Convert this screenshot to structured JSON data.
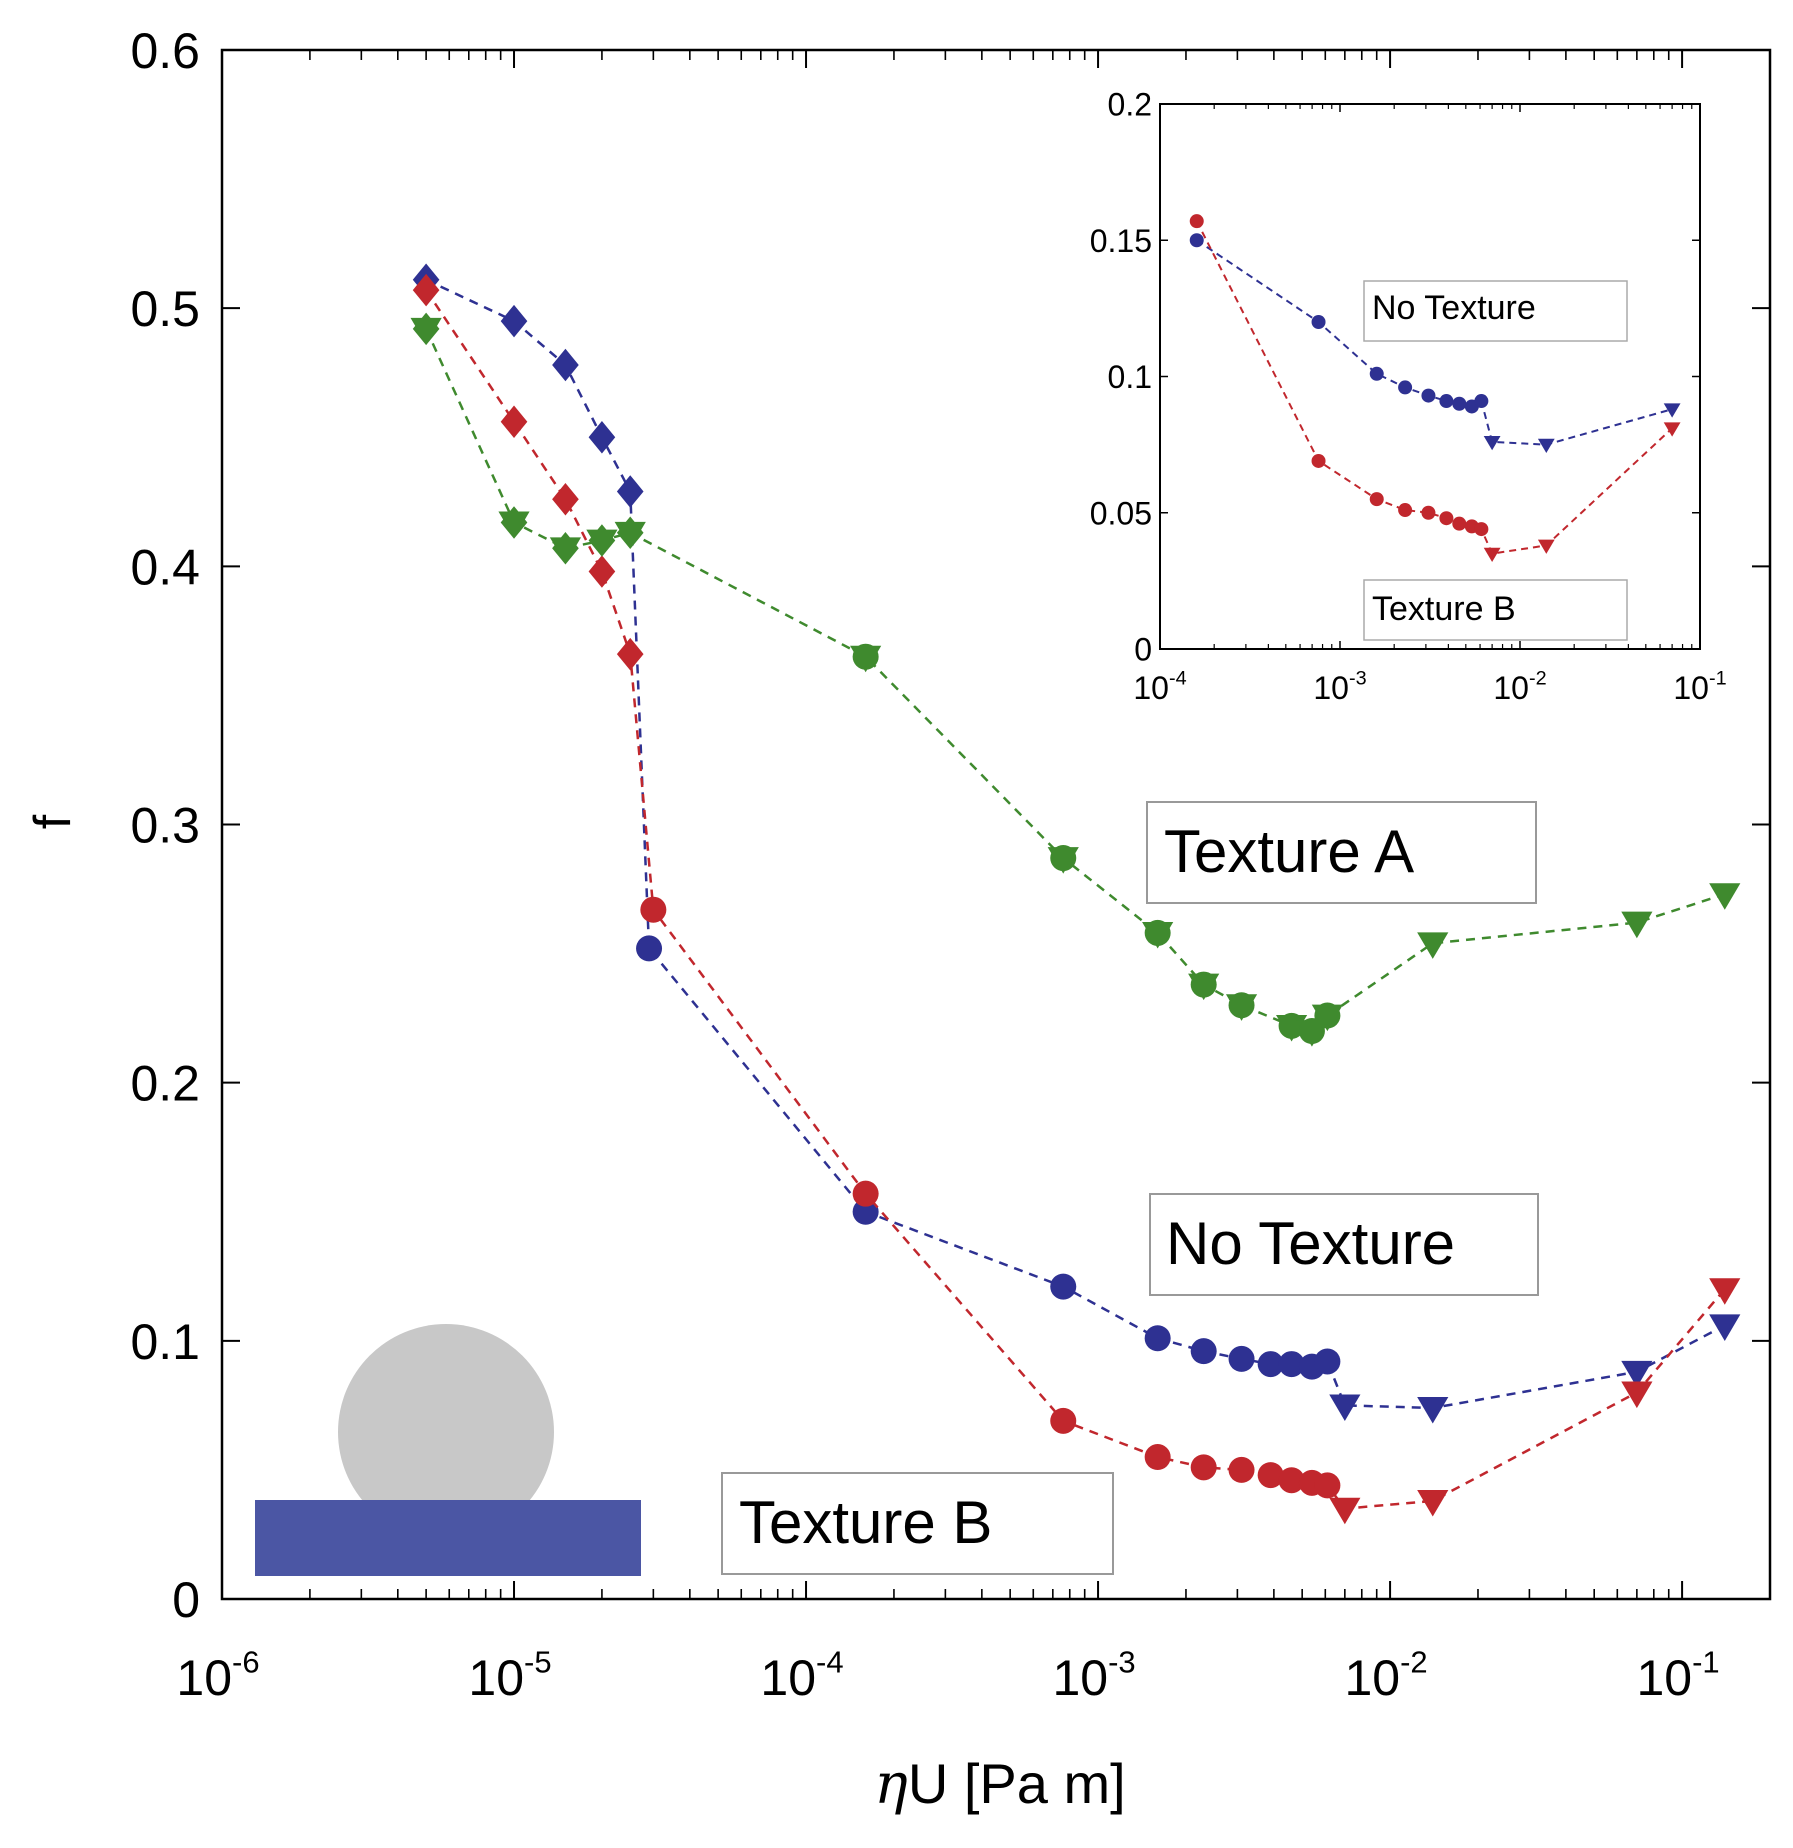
{
  "chart_data": [
    {
      "id": "main",
      "type": "scatter",
      "xscale": "log",
      "xlim": [
        1e-06,
        0.2
      ],
      "ylim": [
        0,
        0.6
      ],
      "xlabel_symbol": "η",
      "xlabel_rest": "U [Pa m]",
      "ylabel": "f",
      "x_ticks": [
        {
          "value": 1e-06,
          "base": "10",
          "exp": "-6"
        },
        {
          "value": 1e-05,
          "base": "10",
          "exp": "-5"
        },
        {
          "value": 0.0001,
          "base": "10",
          "exp": "-4"
        },
        {
          "value": 0.001,
          "base": "10",
          "exp": "-3"
        },
        {
          "value": 0.01,
          "base": "10",
          "exp": "-2"
        },
        {
          "value": 0.1,
          "base": "10",
          "exp": "-1"
        }
      ],
      "y_ticks": [
        {
          "value": 0,
          "label": "0"
        },
        {
          "value": 0.1,
          "label": "0.1"
        },
        {
          "value": 0.2,
          "label": "0.2"
        },
        {
          "value": 0.3,
          "label": "0.3"
        },
        {
          "value": 0.4,
          "label": "0.4"
        },
        {
          "value": 0.5,
          "label": "0.5"
        },
        {
          "value": 0.6,
          "label": "0.6"
        }
      ],
      "series": [
        {
          "name": "No Texture",
          "color": "#2e3192",
          "points": [
            {
              "x": 5e-06,
              "y": 0.511,
              "marker": "diamond"
            },
            {
              "x": 1e-05,
              "y": 0.495,
              "marker": "diamond"
            },
            {
              "x": 1.5e-05,
              "y": 0.478,
              "marker": "diamond"
            },
            {
              "x": 2e-05,
              "y": 0.45,
              "marker": "diamond"
            },
            {
              "x": 2.5e-05,
              "y": 0.429,
              "marker": "diamond"
            },
            {
              "x": 2.9e-05,
              "y": 0.252,
              "marker": "circle"
            },
            {
              "x": 0.00016,
              "y": 0.15,
              "marker": "circle"
            },
            {
              "x": 0.00076,
              "y": 0.121,
              "marker": "circle"
            },
            {
              "x": 0.0016,
              "y": 0.101,
              "marker": "circle"
            },
            {
              "x": 0.0023,
              "y": 0.096,
              "marker": "circle"
            },
            {
              "x": 0.0031,
              "y": 0.093,
              "marker": "circle"
            },
            {
              "x": 0.0039,
              "y": 0.091,
              "marker": "circle"
            },
            {
              "x": 0.0046,
              "y": 0.091,
              "marker": "circle"
            },
            {
              "x": 0.0054,
              "y": 0.09,
              "marker": "circle"
            },
            {
              "x": 0.0061,
              "y": 0.092,
              "marker": "circle"
            },
            {
              "x": 0.007,
              "y": 0.075,
              "marker": "triangle"
            },
            {
              "x": 0.014,
              "y": 0.074,
              "marker": "triangle"
            },
            {
              "x": 0.07,
              "y": 0.088,
              "marker": "triangle"
            },
            {
              "x": 0.14,
              "y": 0.106,
              "marker": "triangle"
            }
          ]
        },
        {
          "name": "Texture B",
          "color": "#c1272d",
          "points": [
            {
              "x": 5e-06,
              "y": 0.507,
              "marker": "diamond"
            },
            {
              "x": 1e-05,
              "y": 0.456,
              "marker": "diamond"
            },
            {
              "x": 1.5e-05,
              "y": 0.426,
              "marker": "diamond"
            },
            {
              "x": 2e-05,
              "y": 0.398,
              "marker": "diamond"
            },
            {
              "x": 2.5e-05,
              "y": 0.366,
              "marker": "diamond"
            },
            {
              "x": 3e-05,
              "y": 0.267,
              "marker": "circle"
            },
            {
              "x": 0.00016,
              "y": 0.157,
              "marker": "circle"
            },
            {
              "x": 0.00076,
              "y": 0.069,
              "marker": "circle"
            },
            {
              "x": 0.0016,
              "y": 0.055,
              "marker": "circle"
            },
            {
              "x": 0.0023,
              "y": 0.051,
              "marker": "circle"
            },
            {
              "x": 0.0031,
              "y": 0.05,
              "marker": "circle"
            },
            {
              "x": 0.0039,
              "y": 0.048,
              "marker": "circle"
            },
            {
              "x": 0.0046,
              "y": 0.046,
              "marker": "circle"
            },
            {
              "x": 0.0054,
              "y": 0.045,
              "marker": "circle"
            },
            {
              "x": 0.0061,
              "y": 0.044,
              "marker": "circle"
            },
            {
              "x": 0.007,
              "y": 0.035,
              "marker": "triangle"
            },
            {
              "x": 0.014,
              "y": 0.038,
              "marker": "triangle"
            },
            {
              "x": 0.07,
              "y": 0.08,
              "marker": "triangle"
            },
            {
              "x": 0.14,
              "y": 0.12,
              "marker": "triangle"
            }
          ]
        },
        {
          "name": "Texture A",
          "color": "#3f8a2e",
          "points": [
            {
              "x": 5e-06,
              "y": 0.492,
              "marker": "triangle-diamond"
            },
            {
              "x": 1e-05,
              "y": 0.417,
              "marker": "triangle-diamond"
            },
            {
              "x": 1.5e-05,
              "y": 0.407,
              "marker": "triangle-diamond"
            },
            {
              "x": 2e-05,
              "y": 0.41,
              "marker": "triangle-diamond"
            },
            {
              "x": 2.5e-05,
              "y": 0.413,
              "marker": "triangle-diamond"
            },
            {
              "x": 0.00016,
              "y": 0.365,
              "marker": "triangle-circle"
            },
            {
              "x": 0.00076,
              "y": 0.287,
              "marker": "triangle-circle"
            },
            {
              "x": 0.0016,
              "y": 0.258,
              "marker": "triangle-circle"
            },
            {
              "x": 0.0023,
              "y": 0.238,
              "marker": "triangle-circle"
            },
            {
              "x": 0.0031,
              "y": 0.23,
              "marker": "triangle-circle"
            },
            {
              "x": 0.0046,
              "y": 0.222,
              "marker": "triangle-circle"
            },
            {
              "x": 0.0054,
              "y": 0.22,
              "marker": "triangle-circle"
            },
            {
              "x": 0.0061,
              "y": 0.226,
              "marker": "triangle-circle"
            },
            {
              "x": 0.014,
              "y": 0.254,
              "marker": "triangle"
            },
            {
              "x": 0.07,
              "y": 0.262,
              "marker": "triangle"
            },
            {
              "x": 0.14,
              "y": 0.273,
              "marker": "triangle"
            }
          ]
        }
      ],
      "annotations": [
        "Texture A",
        "No Texture",
        "Texture B"
      ]
    },
    {
      "id": "inset",
      "type": "scatter",
      "xscale": "log",
      "xlim": [
        0.0001,
        0.1
      ],
      "ylim": [
        0,
        0.2
      ],
      "x_ticks": [
        {
          "value": 0.0001,
          "base": "10",
          "exp": "-4"
        },
        {
          "value": 0.001,
          "base": "10",
          "exp": "-3"
        },
        {
          "value": 0.01,
          "base": "10",
          "exp": "-2"
        },
        {
          "value": 0.1,
          "base": "10",
          "exp": "-1"
        }
      ],
      "y_ticks": [
        {
          "value": 0,
          "label": "0"
        },
        {
          "value": 0.05,
          "label": "0.05"
        },
        {
          "value": 0.1,
          "label": "0.1"
        },
        {
          "value": 0.15,
          "label": "0.15"
        },
        {
          "value": 0.2,
          "label": "0.2"
        }
      ],
      "series": [
        {
          "name": "No Texture",
          "color": "#2e3192",
          "points": [
            {
              "x": 0.00016,
              "y": 0.15,
              "marker": "circle"
            },
            {
              "x": 0.00076,
              "y": 0.12,
              "marker": "circle"
            },
            {
              "x": 0.0016,
              "y": 0.101,
              "marker": "circle"
            },
            {
              "x": 0.0023,
              "y": 0.096,
              "marker": "circle"
            },
            {
              "x": 0.0031,
              "y": 0.093,
              "marker": "circle"
            },
            {
              "x": 0.0039,
              "y": 0.091,
              "marker": "circle"
            },
            {
              "x": 0.0046,
              "y": 0.09,
              "marker": "circle"
            },
            {
              "x": 0.0054,
              "y": 0.089,
              "marker": "circle"
            },
            {
              "x": 0.0061,
              "y": 0.091,
              "marker": "circle"
            },
            {
              "x": 0.007,
              "y": 0.076,
              "marker": "triangle"
            },
            {
              "x": 0.014,
              "y": 0.075,
              "marker": "triangle"
            },
            {
              "x": 0.07,
              "y": 0.088,
              "marker": "triangle"
            }
          ]
        },
        {
          "name": "Texture B",
          "color": "#c1272d",
          "points": [
            {
              "x": 0.00016,
              "y": 0.157,
              "marker": "circle"
            },
            {
              "x": 0.00076,
              "y": 0.069,
              "marker": "circle"
            },
            {
              "x": 0.0016,
              "y": 0.055,
              "marker": "circle"
            },
            {
              "x": 0.0023,
              "y": 0.051,
              "marker": "circle"
            },
            {
              "x": 0.0031,
              "y": 0.05,
              "marker": "circle"
            },
            {
              "x": 0.0039,
              "y": 0.048,
              "marker": "circle"
            },
            {
              "x": 0.0046,
              "y": 0.046,
              "marker": "circle"
            },
            {
              "x": 0.0054,
              "y": 0.045,
              "marker": "circle"
            },
            {
              "x": 0.0061,
              "y": 0.044,
              "marker": "circle"
            },
            {
              "x": 0.007,
              "y": 0.035,
              "marker": "triangle"
            },
            {
              "x": 0.014,
              "y": 0.038,
              "marker": "triangle"
            },
            {
              "x": 0.07,
              "y": 0.081,
              "marker": "triangle"
            }
          ]
        }
      ],
      "annotations": [
        "No Texture",
        "Texture B"
      ]
    }
  ],
  "colors": {
    "droplet": "#c8c8c8",
    "substrate": "#4b56a4"
  }
}
